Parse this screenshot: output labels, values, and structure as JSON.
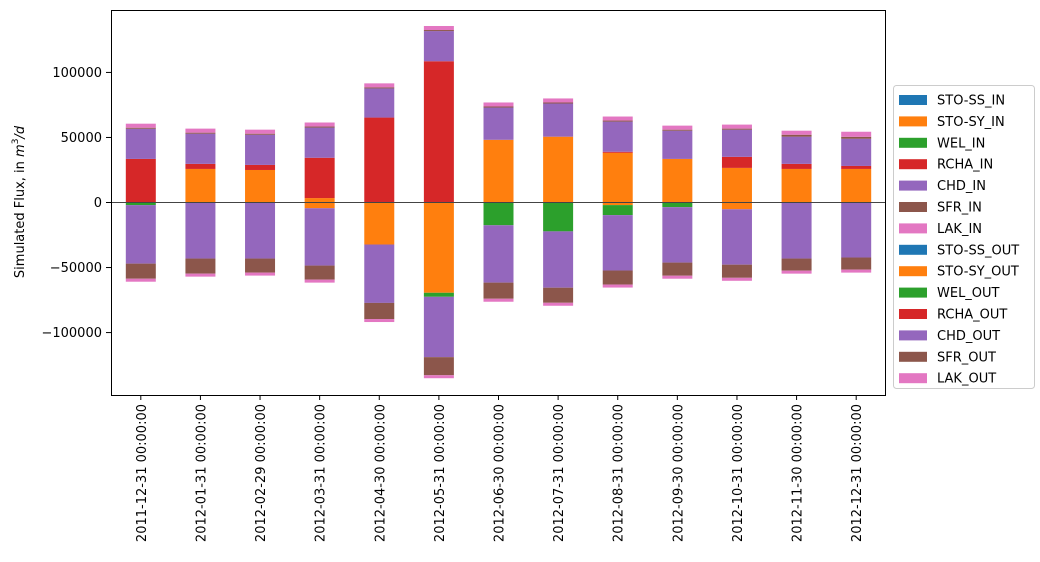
{
  "chart_data": {
    "type": "bar",
    "stacked": true,
    "title": "",
    "xlabel": "",
    "ylabel": "Simulated Flux, in m3/d",
    "ylabel_parts": {
      "main": "Simulated Flux, in ",
      "m": "m",
      "exp": "3",
      "tail": "/d"
    },
    "ylim": [
      -148000,
      148000
    ],
    "yticks": [
      -100000,
      -50000,
      0,
      50000,
      100000
    ],
    "ytick_labels": [
      "−100000",
      "−50000",
      "0",
      "50000",
      "100000"
    ],
    "legend_position": "center-right",
    "categories": [
      "2011-12-31 00:00:00",
      "2012-01-31 00:00:00",
      "2012-02-29 00:00:00",
      "2012-03-31 00:00:00",
      "2012-04-30 00:00:00",
      "2012-05-31 00:00:00",
      "2012-06-30 00:00:00",
      "2012-07-31 00:00:00",
      "2012-08-31 00:00:00",
      "2012-09-30 00:00:00",
      "2012-10-31 00:00:00",
      "2012-11-30 00:00:00",
      "2012-12-31 00:00:00"
    ],
    "series": [
      {
        "name": "STO-SS_IN",
        "color": "#1f77b4",
        "values": [
          0,
          0,
          0,
          0,
          0,
          0,
          0,
          0,
          0,
          0,
          0,
          0,
          0
        ]
      },
      {
        "name": "STO-SY_IN",
        "color": "#ff7f0e",
        "values": [
          0,
          25800,
          25000,
          3400,
          0,
          0,
          48200,
          50600,
          38200,
          33500,
          26600,
          25800,
          25800
        ]
      },
      {
        "name": "WEL_IN",
        "color": "#2ca02c",
        "values": [
          0,
          0,
          0,
          0,
          0,
          0,
          0,
          0,
          0,
          0,
          0,
          0,
          0
        ]
      },
      {
        "name": "RCHA_IN",
        "color": "#d62728",
        "values": [
          33500,
          3900,
          3900,
          31000,
          65300,
          108600,
          0,
          0,
          800,
          0,
          8500,
          3900,
          2300
        ]
      },
      {
        "name": "CHD_IN",
        "color": "#9467bd",
        "values": [
          23200,
          23200,
          23200,
          23200,
          22400,
          23200,
          24800,
          25500,
          23200,
          21700,
          20900,
          20900,
          20900
        ]
      },
      {
        "name": "SFR_IN",
        "color": "#8c564b",
        "values": [
          800,
          800,
          800,
          800,
          800,
          800,
          800,
          800,
          800,
          800,
          800,
          1500,
          1500
        ]
      },
      {
        "name": "LAK_IN",
        "color": "#e377c2",
        "values": [
          3100,
          3100,
          3100,
          3100,
          3100,
          3100,
          3100,
          3100,
          3100,
          3100,
          3100,
          3100,
          3900
        ]
      },
      {
        "name": "STO-SS_OUT",
        "color": "#1f77b4",
        "values": [
          0,
          0,
          0,
          0,
          0,
          0,
          0,
          0,
          0,
          0,
          0,
          0,
          0
        ]
      },
      {
        "name": "STO-SY_OUT",
        "color": "#ff7f0e",
        "values": [
          0,
          0,
          0,
          -4400,
          -32300,
          -69400,
          0,
          0,
          -2000,
          0,
          -5200,
          0,
          0
        ]
      },
      {
        "name": "WEL_OUT",
        "color": "#2ca02c",
        "values": [
          -2000,
          0,
          0,
          0,
          0,
          -3100,
          -17500,
          -22200,
          -7700,
          -3600,
          0,
          0,
          0
        ]
      },
      {
        "name": "RCHA_OUT",
        "color": "#d62728",
        "values": [
          0,
          0,
          0,
          0,
          0,
          0,
          0,
          0,
          0,
          0,
          0,
          0,
          0
        ]
      },
      {
        "name": "CHD_OUT",
        "color": "#9467bd",
        "values": [
          -45000,
          -43100,
          -43100,
          -44100,
          -44900,
          -46400,
          -44100,
          -43300,
          -42600,
          -42600,
          -42600,
          -43100,
          -42300
        ]
      },
      {
        "name": "SFR_OUT",
        "color": "#8c564b",
        "values": [
          -11600,
          -11600,
          -10800,
          -10800,
          -12400,
          -13900,
          -12400,
          -11600,
          -10800,
          -10100,
          -10100,
          -9300,
          -9300
        ]
      },
      {
        "name": "LAK_OUT",
        "color": "#e377c2",
        "values": [
          -2300,
          -2300,
          -2300,
          -2300,
          -2300,
          -2300,
          -2300,
          -2300,
          -2300,
          -2300,
          -2300,
          -2300,
          -2300
        ]
      }
    ]
  }
}
